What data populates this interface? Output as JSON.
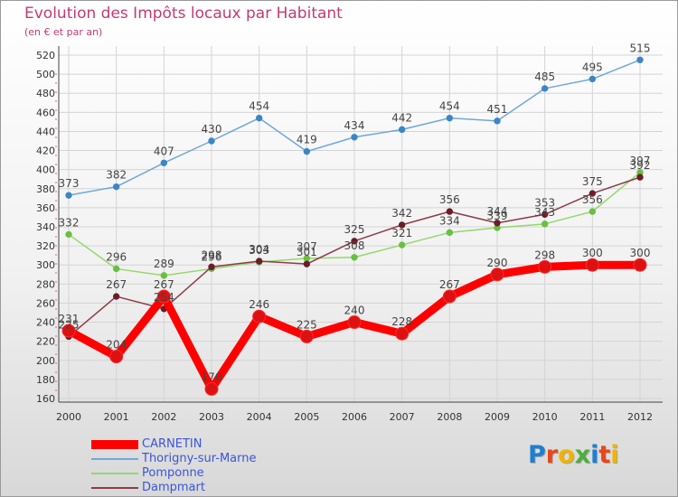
{
  "title": "Evolution des Impôts locaux par Habitant",
  "subtitle": "(en € et par an)",
  "logo": {
    "text": "Proxiti",
    "letter_colors": [
      "#1e7fd1",
      "#e8461b",
      "#f0b400",
      "#4caf3a",
      "#1e7fd1",
      "#e8461b",
      "#f0b400"
    ]
  },
  "chart_data": {
    "type": "line",
    "x": [
      "2000",
      "2001",
      "2002",
      "2003",
      "2004",
      "2005",
      "2006",
      "2007",
      "2008",
      "2009",
      "2010",
      "2011",
      "2012"
    ],
    "ylim": [
      160,
      520
    ],
    "yticks": [
      160,
      180,
      200,
      220,
      240,
      260,
      280,
      300,
      320,
      340,
      360,
      380,
      400,
      420,
      440,
      460,
      480,
      500,
      520
    ],
    "grid": true,
    "legend_position": "bottom-left",
    "series": [
      {
        "name": "CARNETIN",
        "color": "#ff0000",
        "point_color": "#dd1111",
        "bold": true,
        "values": [
          231,
          204,
          267,
          170,
          246,
          225,
          240,
          228,
          267,
          290,
          298,
          300,
          300
        ]
      },
      {
        "name": "Thorigny-sur-Marne",
        "color": "#6fa8dc",
        "point_color": "#3d85c6",
        "bold": false,
        "values": [
          373,
          382,
          407,
          430,
          454,
          419,
          434,
          442,
          454,
          451,
          485,
          495,
          515
        ]
      },
      {
        "name": "Pomponne",
        "color": "#93d86b",
        "point_color": "#6abf40",
        "bold": false,
        "values": [
          332,
          296,
          289,
          296,
          303,
          307,
          308,
          321,
          334,
          339,
          343,
          356,
          397
        ]
      },
      {
        "name": "Dampmart",
        "color": "#8e3b4a",
        "point_color": "#6b1d28",
        "bold": false,
        "values": [
          225,
          267,
          254,
          298,
          304,
          301,
          325,
          342,
          356,
          344,
          353,
          375,
          392
        ]
      }
    ]
  }
}
